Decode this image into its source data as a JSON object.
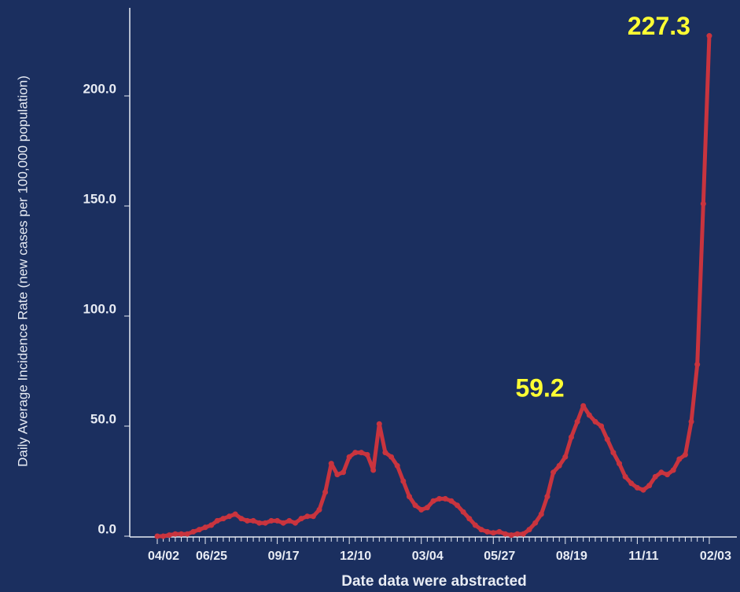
{
  "chart_data": {
    "type": "line",
    "x_label": "Date data were abstracted",
    "y_label": "Daily Average Incidence Rate (new cases per 100,000 population)",
    "categories": [
      "04/02",
      null,
      null,
      null,
      null,
      null,
      null,
      null,
      "06/25",
      null,
      null,
      null,
      null,
      null,
      null,
      null,
      null,
      null,
      null,
      null,
      "09/17",
      null,
      null,
      null,
      null,
      null,
      null,
      null,
      null,
      null,
      null,
      null,
      "12/10",
      null,
      null,
      null,
      null,
      null,
      null,
      null,
      null,
      null,
      null,
      null,
      "03/04",
      null,
      null,
      null,
      null,
      null,
      null,
      null,
      null,
      null,
      null,
      null,
      "05/27",
      null,
      null,
      null,
      null,
      null,
      null,
      null,
      null,
      null,
      null,
      null,
      "08/19",
      null,
      null,
      null,
      null,
      null,
      null,
      null,
      null,
      null,
      null,
      null,
      "11/11",
      null,
      null,
      null,
      null,
      null,
      null,
      null,
      null,
      null,
      null,
      null,
      "02/03"
    ],
    "series": [
      {
        "name": "Daily Average Incidence Rate",
        "color": "#c9343e",
        "values": [
          0,
          0,
          0.5,
          1,
          1,
          1,
          2,
          3,
          4,
          5,
          7,
          8,
          9,
          10,
          8,
          7,
          7,
          6,
          6,
          7,
          7,
          6,
          7,
          6,
          8,
          9,
          9,
          12,
          20,
          33,
          28,
          29,
          36,
          38,
          38,
          37,
          30,
          51,
          38,
          36,
          32,
          25,
          18,
          14,
          12,
          13,
          16,
          17,
          17,
          16,
          14,
          11,
          8,
          5,
          3,
          2,
          1.5,
          2,
          1,
          0.5,
          1,
          1,
          3,
          6,
          10,
          18,
          29,
          32,
          36,
          45,
          52,
          59.2,
          55,
          52,
          50,
          44,
          38,
          33,
          27,
          24,
          22,
          21,
          23,
          27,
          29,
          28,
          30,
          35,
          37,
          52,
          78,
          151,
          227.3
        ]
      }
    ],
    "ylim": [
      0,
      240
    ],
    "yticks": [
      {
        "value": 0,
        "label": "0.0"
      },
      {
        "value": 50,
        "label": "50.0"
      },
      {
        "value": 100,
        "label": "100.0"
      },
      {
        "value": 150,
        "label": "150.0"
      },
      {
        "value": 200,
        "label": "200.0"
      }
    ],
    "annotations": [
      {
        "index": 71
      },
      {
        "index": 92
      }
    ]
  }
}
